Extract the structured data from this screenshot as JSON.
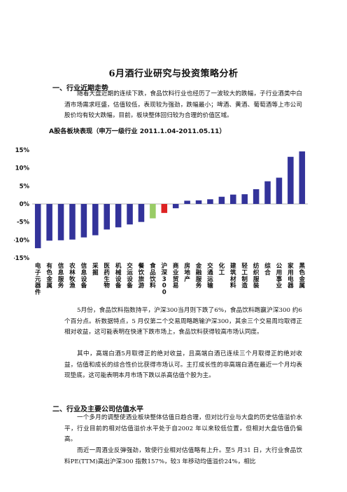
{
  "doc": {
    "title": "6月酒行业研究与投资策略分析",
    "section1_heading": "一、行业近期走势",
    "section1_para": "随着大盘近期的连续下跌，食品饮料行业也经历了一波较大的跌幅，子行业酒类中白酒市场需求旺盛，估值较低，表现较为强劲，跌幅最小；啤酒、黄酒、葡萄酒等上市公司股价均有较大跌幅，目前，板块整体回归较为合理的价值区域。",
    "chart_caption": "A股各板块表现（申万一级行业 2011.1.04-2011.05.11）",
    "para_after_chart_1": "5月份，食品饮料指数持平，沪深300当月则下跌了6%，食品饮料跑赢沪深300 约6 个百分点。析数据特点，5 月仅第二个交易周略跑输沪深300，其余三个交易周均取得正相对收益，这可能表明在快速下跌市场上，食品饮料获得较高市场认同度。",
    "para_after_chart_2": "其中，高端白酒5月取得正的绝对收益，且高端白酒已连续三个月取得正的绝对收益，估值和成长的综合性价比获得市场认可。主打成长性的非高端白酒在最近一个月均表现垫底，这可能表明本月市场下跌以杀高估值个股为主。",
    "section2_heading": "二、行业及主要公司估值水平",
    "section2_para1": "一个多月的调整使酒业板块整体估值日趋合理，但对比行业与大盘的历史估值溢价水平，行业目前的相对估值溢价水平处于自2002 年以来较低位置，但相对大盘估值仍偏高。",
    "section2_para2": "而近一周酒业反弹强劲，致使行业相对估值略有上升。至5 月31 日，大行业食品饮料PE(TTM)高出沪深300 指数157%，较3 年移动均值溢价24%，相比"
  },
  "chart_data": {
    "type": "bar",
    "title": "A股各板块表现（申万一级行业 2011.1.04-2011.05.11）",
    "xlabel": "",
    "ylabel": "",
    "ylim": [
      -15,
      15
    ],
    "ytick_labels": [
      "15%",
      "10%",
      "5%",
      "0%",
      "-5%",
      "-10%",
      "-15%"
    ],
    "yticks": [
      15,
      10,
      5,
      0,
      -5,
      -10,
      -15
    ],
    "categories": [
      "电子元器件",
      "有色金属",
      "信息服务",
      "农林牧渔",
      "信息设备",
      "采掘",
      "医药生物",
      "机械设备",
      "交运设备",
      "餐饮旅游",
      "食品饮料",
      "沪深300",
      "商业贸易",
      "房地产",
      "金融服务",
      "交通运输",
      "化工",
      "建筑材料",
      "轻工制造",
      "纺织服装",
      "综合",
      "公用事业",
      "家用电器",
      "黑色金属"
    ],
    "values": [
      -12.3,
      -10.2,
      -10.1,
      -9.9,
      -9.3,
      -8.7,
      -7.1,
      -6.5,
      -5.7,
      -5.0,
      -4.0,
      -2.5,
      -1.2,
      0.9,
      1.0,
      1.3,
      2.0,
      2.6,
      2.7,
      4.1,
      6.3,
      7.3,
      13.1,
      14.6
    ],
    "colors": {
      "default": "#33339a",
      "食品饮料": "#99cc66",
      "沪深300": "#dd2222"
    }
  }
}
